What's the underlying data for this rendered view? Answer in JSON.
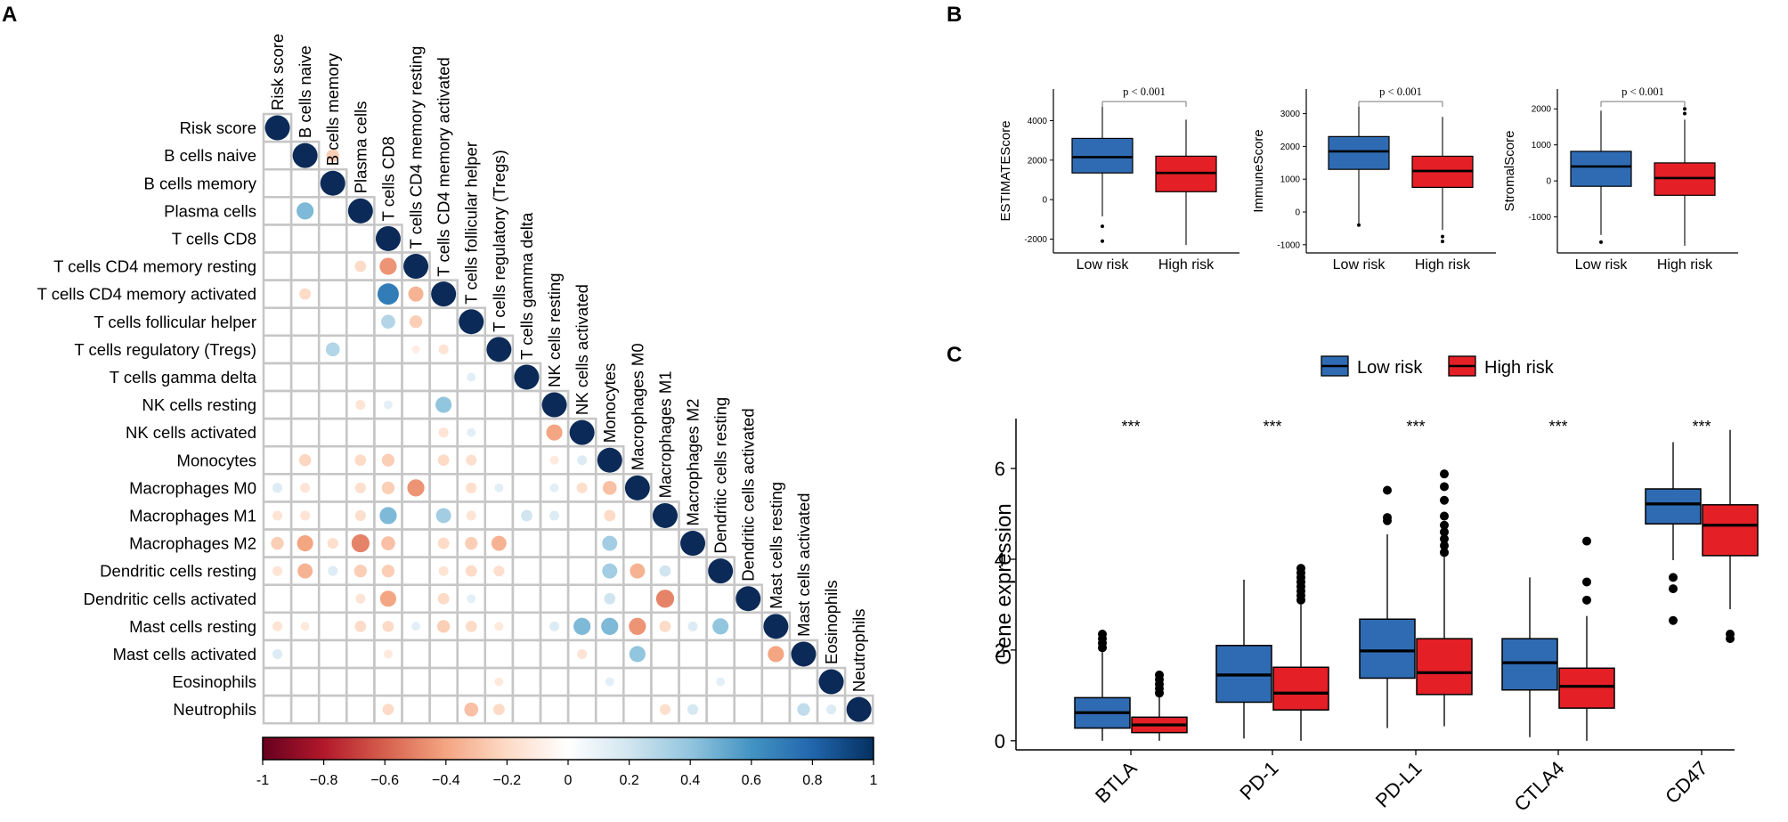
{
  "panel_labels": [
    "A",
    "B",
    "C"
  ],
  "colors": {
    "low_risk": "#2f6bb3",
    "high_risk": "#e41f26",
    "cell_border": "#c6c6c6",
    "diag_dot": "#0b2a57",
    "colorbar_stops": [
      "#67001f",
      "#b2182b",
      "#d6604d",
      "#f4a582",
      "#fddbc7",
      "#ffffff",
      "#d1e5f0",
      "#92c5de",
      "#4393c3",
      "#2166ac",
      "#053061"
    ]
  },
  "chart_data": [
    {
      "id": "A",
      "type": "heatmap",
      "title": "",
      "labels": [
        "Risk score",
        "B cells naive",
        "B cells memory",
        "Plasma cells",
        "T cells CD8",
        "T cells CD4 memory resting",
        "T cells CD4 memory activated",
        "T cells follicular helper",
        "T cells regulatory (Tregs)",
        "T cells gamma delta",
        "NK cells resting",
        "NK cells activated",
        "Monocytes",
        "Macrophages M0",
        "Macrophages M1",
        "Macrophages M2",
        "Dendritic cells resting",
        "Dendritic cells activated",
        "Mast cells resting",
        "Mast cells activated",
        "Eosinophils",
        "Neutrophils"
      ],
      "correlations": [
        [
          1,
          2,
          -0.25
        ],
        [
          3,
          1,
          0.45
        ],
        [
          5,
          3,
          -0.2
        ],
        [
          5,
          4,
          -0.45
        ],
        [
          6,
          1,
          -0.2
        ],
        [
          6,
          4,
          0.7
        ],
        [
          6,
          5,
          -0.35
        ],
        [
          7,
          4,
          0.3
        ],
        [
          7,
          5,
          -0.25
        ],
        [
          8,
          2,
          0.3
        ],
        [
          8,
          5,
          -0.1
        ],
        [
          8,
          6,
          -0.15
        ],
        [
          9,
          7,
          0.12
        ],
        [
          10,
          3,
          -0.15
        ],
        [
          10,
          4,
          0.12
        ],
        [
          10,
          6,
          0.4
        ],
        [
          11,
          6,
          -0.15
        ],
        [
          11,
          7,
          0.12
        ],
        [
          11,
          10,
          -0.4
        ],
        [
          12,
          1,
          -0.22
        ],
        [
          12,
          3,
          -0.2
        ],
        [
          12,
          4,
          -0.25
        ],
        [
          12,
          6,
          -0.2
        ],
        [
          12,
          7,
          -0.18
        ],
        [
          12,
          10,
          -0.12
        ],
        [
          12,
          11,
          0.15
        ],
        [
          13,
          0,
          0.15
        ],
        [
          13,
          1,
          -0.15
        ],
        [
          13,
          3,
          -0.18
        ],
        [
          13,
          4,
          -0.25
        ],
        [
          13,
          5,
          -0.45
        ],
        [
          13,
          7,
          -0.18
        ],
        [
          13,
          8,
          0.12
        ],
        [
          13,
          10,
          0.12
        ],
        [
          13,
          11,
          -0.18
        ],
        [
          13,
          12,
          -0.3
        ],
        [
          14,
          0,
          -0.15
        ],
        [
          14,
          1,
          -0.15
        ],
        [
          14,
          3,
          -0.18
        ],
        [
          14,
          4,
          0.45
        ],
        [
          14,
          6,
          0.35
        ],
        [
          14,
          7,
          -0.15
        ],
        [
          14,
          9,
          0.2
        ],
        [
          14,
          10,
          0.15
        ],
        [
          14,
          12,
          -0.2
        ],
        [
          15,
          0,
          -0.25
        ],
        [
          15,
          1,
          -0.4
        ],
        [
          15,
          2,
          -0.18
        ],
        [
          15,
          3,
          -0.5
        ],
        [
          15,
          4,
          -0.3
        ],
        [
          15,
          6,
          -0.2
        ],
        [
          15,
          7,
          -0.25
        ],
        [
          15,
          8,
          -0.35
        ],
        [
          15,
          12,
          0.35
        ],
        [
          16,
          0,
          -0.15
        ],
        [
          16,
          1,
          -0.35
        ],
        [
          16,
          2,
          0.15
        ],
        [
          16,
          3,
          -0.25
        ],
        [
          16,
          4,
          -0.25
        ],
        [
          16,
          6,
          -0.15
        ],
        [
          16,
          7,
          -0.2
        ],
        [
          16,
          8,
          -0.18
        ],
        [
          16,
          12,
          0.35
        ],
        [
          16,
          13,
          -0.35
        ],
        [
          16,
          14,
          0.2
        ],
        [
          17,
          3,
          -0.15
        ],
        [
          17,
          4,
          -0.4
        ],
        [
          17,
          6,
          -0.2
        ],
        [
          17,
          7,
          0.12
        ],
        [
          17,
          12,
          0.2
        ],
        [
          17,
          14,
          -0.5
        ],
        [
          18,
          0,
          -0.15
        ],
        [
          18,
          1,
          -0.12
        ],
        [
          18,
          3,
          -0.2
        ],
        [
          18,
          4,
          -0.2
        ],
        [
          18,
          5,
          0.12
        ],
        [
          18,
          6,
          -0.25
        ],
        [
          18,
          7,
          -0.2
        ],
        [
          18,
          8,
          -0.12
        ],
        [
          18,
          10,
          0.15
        ],
        [
          18,
          11,
          0.45
        ],
        [
          18,
          12,
          0.45
        ],
        [
          18,
          13,
          -0.45
        ],
        [
          18,
          14,
          -0.2
        ],
        [
          18,
          15,
          0.15
        ],
        [
          18,
          16,
          0.4
        ],
        [
          19,
          0,
          0.15
        ],
        [
          19,
          4,
          -0.12
        ],
        [
          19,
          11,
          -0.15
        ],
        [
          19,
          13,
          0.4
        ],
        [
          19,
          18,
          -0.4
        ],
        [
          20,
          8,
          -0.12
        ],
        [
          20,
          12,
          0.12
        ],
        [
          20,
          16,
          0.12
        ],
        [
          21,
          4,
          -0.2
        ],
        [
          21,
          7,
          -0.3
        ],
        [
          21,
          8,
          -0.2
        ],
        [
          21,
          14,
          -0.18
        ],
        [
          21,
          15,
          0.18
        ],
        [
          21,
          19,
          0.25
        ],
        [
          21,
          20,
          0.15
        ]
      ],
      "colorbar": {
        "range": [
          -1,
          1
        ],
        "ticks": [
          "-1",
          "−0.8",
          "−0.6",
          "−0.4",
          "−0.2",
          "0",
          "0.2",
          "0.4",
          "0.6",
          "0.8",
          "1"
        ]
      }
    },
    {
      "id": "B1",
      "type": "box",
      "ylabel": "ESTIMATEScore",
      "categories": [
        "Low risk",
        "High risk"
      ],
      "pvalue": "p < 0.001",
      "ylim": [
        -2700,
        5600
      ],
      "yticks": [
        "-2000",
        "0",
        "2000",
        "4000"
      ],
      "yticks_values": [
        -2000,
        0,
        2000,
        4000
      ],
      "boxes": [
        {
          "q1": 1350,
          "median": 2150,
          "q3": 3100,
          "whisker_low": -850,
          "whisker_high": 4850,
          "outliers": [
            -1350,
            -2100
          ]
        },
        {
          "q1": 400,
          "median": 1350,
          "q3": 2200,
          "whisker_low": -2300,
          "whisker_high": 4050,
          "outliers": []
        }
      ]
    },
    {
      "id": "B2",
      "type": "box",
      "ylabel": "ImmuneScore",
      "categories": [
        "Low risk",
        "High risk"
      ],
      "pvalue": "p < 0.001",
      "ylim": [
        -1250,
        3750
      ],
      "yticks": [
        "-1000",
        "0",
        "1000",
        "2000",
        "3000"
      ],
      "yticks_values": [
        -1000,
        0,
        1000,
        2000,
        3000
      ],
      "boxes": [
        {
          "q1": 1300,
          "median": 1850,
          "q3": 2300,
          "whisker_low": -350,
          "whisker_high": 3250,
          "outliers": [
            -400
          ]
        },
        {
          "q1": 750,
          "median": 1250,
          "q3": 1700,
          "whisker_low": -550,
          "whisker_high": 2900,
          "outliers": [
            -750,
            -900
          ]
        }
      ]
    },
    {
      "id": "B3",
      "type": "box",
      "ylabel": "StromalScore",
      "categories": [
        "Low risk",
        "High risk"
      ],
      "pvalue": "p < 0.001",
      "ylim": [
        -2000,
        2550
      ],
      "yticks": [
        "-1000",
        "0",
        "1000",
        "2000"
      ],
      "yticks_values": [
        -1000,
        0,
        1000,
        2000
      ],
      "boxes": [
        {
          "q1": -150,
          "median": 400,
          "q3": 820,
          "whisker_low": -1500,
          "whisker_high": 1950,
          "outliers": [
            -1700
          ]
        },
        {
          "q1": -400,
          "median": 80,
          "q3": 500,
          "whisker_low": -1800,
          "whisker_high": 1700,
          "outliers": [
            1870,
            2000
          ]
        }
      ]
    },
    {
      "id": "C",
      "type": "box",
      "ylabel": "Gene expression",
      "xlabel": "",
      "legend": [
        "Low risk",
        "High risk"
      ],
      "legend_position": "top-center",
      "categories": [
        "BTLA",
        "PD-1",
        "PD-L1",
        "CTLA4",
        "CD47"
      ],
      "significance": [
        "***",
        "***",
        "***",
        "***",
        "***"
      ],
      "ylim": [
        -0.2,
        7.1
      ],
      "yticks": [
        "0",
        "2",
        "4",
        "6"
      ],
      "yticks_values": [
        0,
        2,
        4,
        6
      ],
      "series": [
        {
          "name": "Low risk",
          "boxes": [
            {
              "q1": 0.28,
              "median": 0.62,
              "q3": 0.95,
              "whisker_low": 0.0,
              "whisker_high": 1.95,
              "outliers": [
                2.05,
                2.15,
                2.25,
                2.35
              ]
            },
            {
              "q1": 0.85,
              "median": 1.45,
              "q3": 2.1,
              "whisker_low": 0.05,
              "whisker_high": 3.55,
              "outliers": []
            },
            {
              "q1": 1.38,
              "median": 1.98,
              "q3": 2.68,
              "whisker_low": 0.28,
              "whisker_high": 4.55,
              "outliers": [
                4.85,
                4.92,
                5.52
              ]
            },
            {
              "q1": 1.12,
              "median": 1.72,
              "q3": 2.25,
              "whisker_low": 0.08,
              "whisker_high": 3.6,
              "outliers": []
            },
            {
              "q1": 4.78,
              "median": 5.22,
              "q3": 5.55,
              "whisker_low": 3.98,
              "whisker_high": 6.58,
              "outliers": [
                3.6,
                3.35,
                2.65
              ]
            }
          ]
        },
        {
          "name": "High risk",
          "boxes": [
            {
              "q1": 0.18,
              "median": 0.35,
              "q3": 0.52,
              "whisker_low": 0.0,
              "whisker_high": 0.98,
              "outliers": [
                1.05,
                1.15,
                1.25,
                1.35,
                1.45
              ]
            },
            {
              "q1": 0.68,
              "median": 1.05,
              "q3": 1.62,
              "whisker_low": 0.0,
              "whisker_high": 3.0,
              "outliers": [
                3.1,
                3.2,
                3.3,
                3.4,
                3.5,
                3.6,
                3.7,
                3.8
              ]
            },
            {
              "q1": 1.02,
              "median": 1.5,
              "q3": 2.25,
              "whisker_low": 0.32,
              "whisker_high": 4.05,
              "outliers": [
                4.15,
                4.3,
                4.45,
                4.6,
                4.75,
                4.95,
                5.3,
                5.6,
                5.88
              ]
            },
            {
              "q1": 0.72,
              "median": 1.2,
              "q3": 1.6,
              "whisker_low": 0.0,
              "whisker_high": 2.75,
              "outliers": [
                3.1,
                3.5,
                4.4
              ]
            },
            {
              "q1": 4.08,
              "median": 4.75,
              "q3": 5.2,
              "whisker_low": 2.9,
              "whisker_high": 6.85,
              "outliers": [
                2.35,
                2.25
              ]
            }
          ]
        }
      ]
    }
  ]
}
